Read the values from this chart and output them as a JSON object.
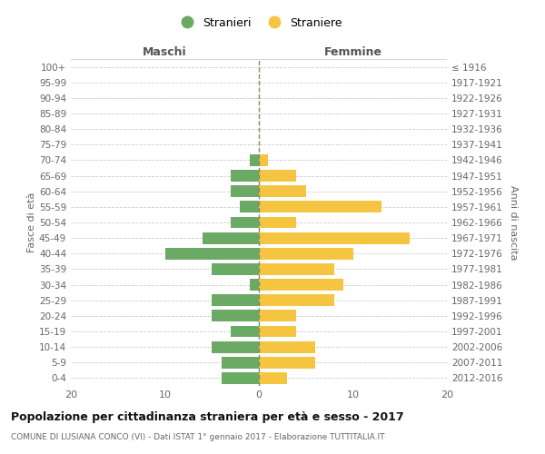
{
  "age_groups": [
    "0-4",
    "5-9",
    "10-14",
    "15-19",
    "20-24",
    "25-29",
    "30-34",
    "35-39",
    "40-44",
    "45-49",
    "50-54",
    "55-59",
    "60-64",
    "65-69",
    "70-74",
    "75-79",
    "80-84",
    "85-89",
    "90-94",
    "95-99",
    "100+"
  ],
  "birth_years": [
    "2012-2016",
    "2007-2011",
    "2002-2006",
    "1997-2001",
    "1992-1996",
    "1987-1991",
    "1982-1986",
    "1977-1981",
    "1972-1976",
    "1967-1971",
    "1962-1966",
    "1957-1961",
    "1952-1956",
    "1947-1951",
    "1942-1946",
    "1937-1941",
    "1932-1936",
    "1927-1931",
    "1922-1926",
    "1917-1921",
    "≤ 1916"
  ],
  "males": [
    4,
    4,
    5,
    3,
    5,
    5,
    1,
    5,
    10,
    6,
    3,
    2,
    3,
    3,
    1,
    0,
    0,
    0,
    0,
    0,
    0
  ],
  "females": [
    3,
    6,
    6,
    4,
    4,
    8,
    9,
    8,
    10,
    16,
    4,
    13,
    5,
    4,
    1,
    0,
    0,
    0,
    0,
    0,
    0
  ],
  "male_color": "#6aaa64",
  "female_color": "#f5c542",
  "grid_color": "#cccccc",
  "title": "Popolazione per cittadinanza straniera per età e sesso - 2017",
  "subtitle": "COMUNE DI LUSIANA CONCO (VI) - Dati ISTAT 1° gennaio 2017 - Elaborazione TUTTITALIA.IT",
  "header_left": "Maschi",
  "header_right": "Femmine",
  "ylabel_left": "Fasce di età",
  "ylabel_right": "Anni di nascita",
  "legend_male": "Stranieri",
  "legend_female": "Straniere",
  "xlim": 20,
  "bar_height": 0.75
}
